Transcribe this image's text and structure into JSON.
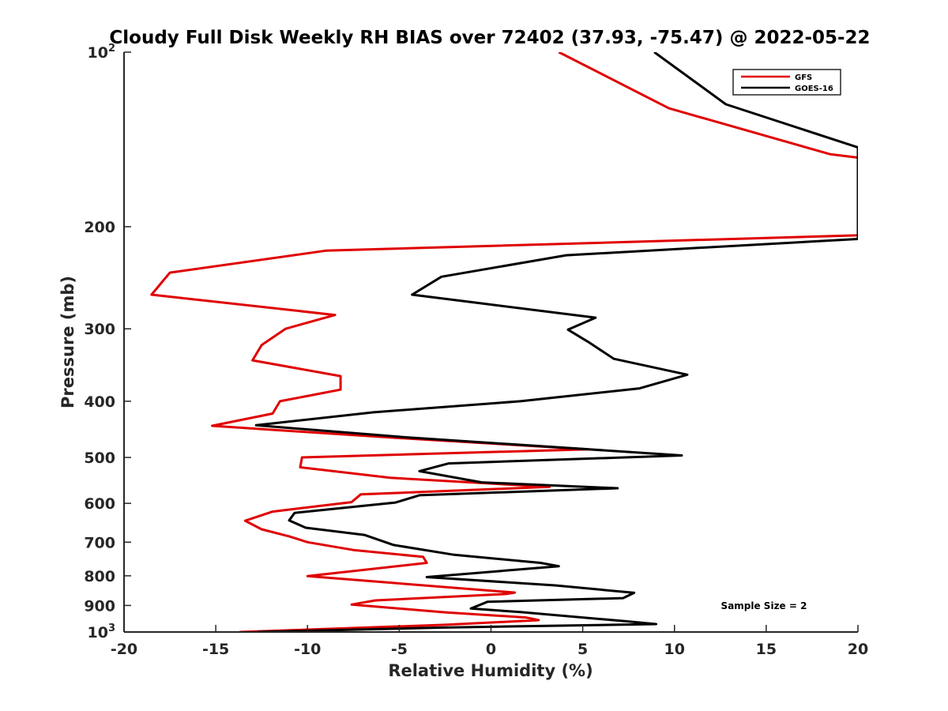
{
  "chart_data": {
    "type": "line",
    "title": "Cloudy Full Disk Weekly RH BIAS over 72402 (37.93, -75.47) @ 2022-05-22",
    "xlabel": "Relative Humidity (%)",
    "ylabel": "Pressure (mb)",
    "xlim": [
      -20,
      20
    ],
    "ylim": [
      100,
      1000
    ],
    "yscale": "log",
    "yreversed": true,
    "xticks": [
      -20,
      -15,
      -10,
      -5,
      0,
      5,
      10,
      15,
      20
    ],
    "yticks": [
      {
        "value": 100,
        "base": "10",
        "exp": "2"
      },
      {
        "value": 200,
        "label": "200"
      },
      {
        "value": 300,
        "label": "300"
      },
      {
        "value": 400,
        "label": "400"
      },
      {
        "value": 500,
        "label": "500"
      },
      {
        "value": 600,
        "label": "600"
      },
      {
        "value": 700,
        "label": "700"
      },
      {
        "value": 800,
        "label": "800"
      },
      {
        "value": 900,
        "label": "900"
      },
      {
        "value": 1000,
        "base": "10",
        "exp": "3"
      }
    ],
    "grid": false,
    "legend_position": "top-right",
    "annotation": "Sample Size = 2",
    "series": [
      {
        "name": "GFS",
        "color": "#e00000",
        "points": [
          [
            3.7,
            100
          ],
          [
            9.7,
            125
          ],
          [
            18.5,
            150
          ],
          [
            20.0,
            152
          ],
          [
            20.0,
            207
          ],
          [
            -9.0,
            220
          ],
          [
            -17.5,
            240
          ],
          [
            -18.5,
            262
          ],
          [
            -8.5,
            284
          ],
          [
            -11.2,
            300
          ],
          [
            -12.5,
            320
          ],
          [
            -13.0,
            340
          ],
          [
            -8.2,
            362
          ],
          [
            -8.2,
            382
          ],
          [
            -11.5,
            400
          ],
          [
            -11.9,
            420
          ],
          [
            -15.2,
            441
          ],
          [
            -5.5,
            462
          ],
          [
            5.3,
            484
          ],
          [
            -10.3,
            500
          ],
          [
            -10.4,
            520
          ],
          [
            -5.5,
            542
          ],
          [
            3.2,
            562
          ],
          [
            -7.1,
            579
          ],
          [
            -7.6,
            597
          ],
          [
            -11.9,
            620
          ],
          [
            -13.4,
            643
          ],
          [
            -12.5,
            665
          ],
          [
            -11.0,
            684
          ],
          [
            -10.0,
            700
          ],
          [
            -7.5,
            722
          ],
          [
            -3.7,
            742
          ],
          [
            -3.5,
            760
          ],
          [
            -10.0,
            801
          ],
          [
            1.3,
            855
          ],
          [
            0.8,
            860
          ],
          [
            -6.3,
            882
          ],
          [
            -7.6,
            897
          ],
          [
            -2.5,
            925
          ],
          [
            1.9,
            944
          ],
          [
            2.6,
            954
          ],
          [
            -2.5,
            972
          ],
          [
            -13.7,
            1000
          ]
        ]
      },
      {
        "name": "GOES-16",
        "color": "#000000",
        "points": [
          [
            8.9,
            100
          ],
          [
            12.8,
            123
          ],
          [
            20.0,
            146
          ],
          [
            20.0,
            210
          ],
          [
            4.1,
            224
          ],
          [
            -2.7,
            244
          ],
          [
            -4.3,
            262
          ],
          [
            5.7,
            287
          ],
          [
            4.2,
            301
          ],
          [
            5.3,
            316
          ],
          [
            6.7,
            338
          ],
          [
            10.7,
            360
          ],
          [
            8.1,
            380
          ],
          [
            1.6,
            400
          ],
          [
            -6.4,
            418
          ],
          [
            -12.8,
            440
          ],
          [
            -4.5,
            462
          ],
          [
            10.4,
            496
          ],
          [
            -2.3,
            512
          ],
          [
            -3.9,
            528
          ],
          [
            -0.5,
            552
          ],
          [
            6.9,
            565
          ],
          [
            -3.9,
            581
          ],
          [
            -5.2,
            598
          ],
          [
            -10.7,
            623
          ],
          [
            -11.0,
            642
          ],
          [
            -10.1,
            661
          ],
          [
            -6.9,
            680
          ],
          [
            -5.3,
            708
          ],
          [
            -2.0,
            736
          ],
          [
            2.7,
            760
          ],
          [
            3.7,
            770
          ],
          [
            -3.5,
            804
          ],
          [
            3.5,
            831
          ],
          [
            7.8,
            856
          ],
          [
            7.2,
            874
          ],
          [
            -0.2,
            887
          ],
          [
            -1.1,
            911
          ],
          [
            1.6,
            924
          ],
          [
            7.3,
            958
          ],
          [
            9.0,
            969
          ],
          [
            -2.9,
            983
          ],
          [
            -12.7,
            1000
          ]
        ]
      }
    ]
  }
}
